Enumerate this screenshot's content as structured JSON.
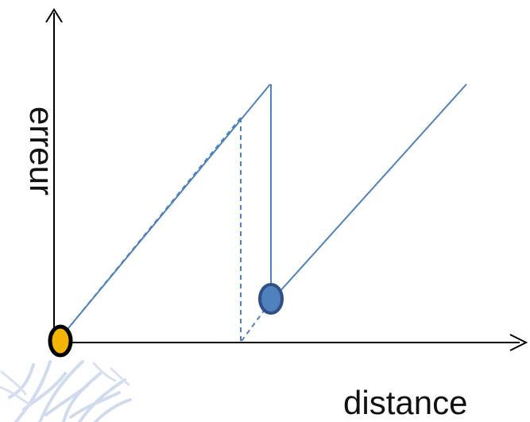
{
  "labels": {
    "y_axis": "erreur",
    "x_axis": "distance"
  },
  "style": {
    "axis_color": "#000000",
    "line_color": "#4f81bd",
    "origin_marker_fill": "#f5b400",
    "origin_marker_stroke": "#000000",
    "reset_marker_fill": "#4f81bd",
    "reset_marker_stroke": "#2f4f86",
    "decor_color": "#b9c8e6"
  },
  "decoration": {
    "icon": "coral-branch-decoration"
  }
}
